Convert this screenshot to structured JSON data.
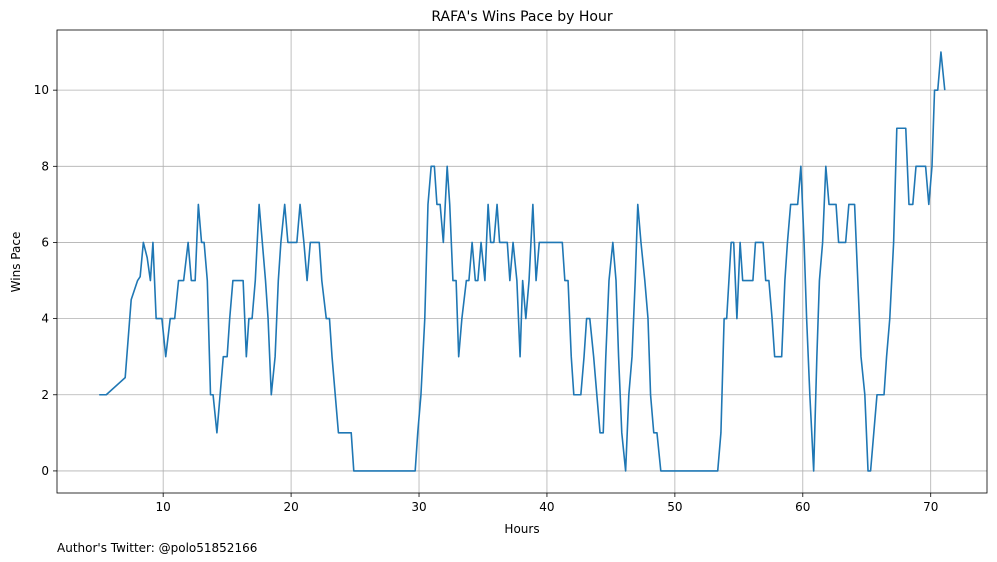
{
  "chart_data": {
    "type": "line",
    "title": "RAFA's Wins Pace by Hour",
    "x_label": "Hours",
    "y_label": "Wins Pace",
    "annotation": "Author's Twitter: @polo51852166",
    "color": "#1f77b4",
    "grid": true,
    "xlim": [
      1.7,
      74.4
    ],
    "ylim": [
      -0.58,
      11.58
    ],
    "xticks": [
      10,
      20,
      30,
      40,
      50,
      60,
      70
    ],
    "yticks": [
      0,
      2,
      4,
      6,
      8,
      10
    ],
    "x": [
      5.0,
      5.55,
      7.03,
      7.5,
      8.0,
      8.2,
      8.45,
      8.75,
      9.0,
      9.2,
      9.45,
      9.9,
      10.2,
      10.55,
      10.9,
      11.2,
      11.6,
      11.95,
      12.2,
      12.5,
      12.75,
      13.0,
      13.2,
      13.45,
      13.7,
      13.9,
      14.2,
      14.45,
      14.7,
      15.0,
      15.2,
      15.45,
      16.25,
      16.5,
      16.7,
      16.95,
      17.2,
      17.5,
      17.75,
      18.0,
      18.2,
      18.45,
      18.75,
      19.0,
      19.2,
      19.5,
      19.75,
      20.45,
      20.7,
      21.0,
      21.25,
      21.5,
      22.2,
      22.4,
      22.75,
      23.0,
      23.2,
      23.45,
      23.7,
      24.7,
      24.9,
      29.7,
      29.9,
      30.15,
      30.45,
      30.7,
      30.95,
      31.2,
      31.4,
      31.65,
      31.9,
      32.2,
      32.4,
      32.65,
      32.9,
      33.1,
      33.35,
      33.7,
      33.9,
      34.15,
      34.4,
      34.6,
      34.85,
      35.15,
      35.4,
      35.6,
      35.85,
      36.1,
      36.3,
      36.9,
      37.1,
      37.35,
      37.65,
      37.9,
      38.1,
      38.35,
      38.6,
      38.9,
      39.15,
      39.4,
      41.2,
      41.4,
      41.65,
      41.9,
      42.1,
      42.65,
      42.9,
      43.1,
      43.35,
      43.65,
      43.9,
      44.15,
      44.4,
      44.6,
      44.85,
      45.15,
      45.4,
      45.6,
      45.85,
      46.15,
      46.4,
      46.65,
      46.9,
      47.1,
      47.35,
      47.65,
      47.9,
      48.1,
      48.35,
      48.6,
      48.9,
      53.35,
      53.6,
      53.85,
      54.05,
      54.4,
      54.6,
      54.85,
      55.1,
      55.3,
      56.1,
      56.3,
      56.9,
      57.1,
      57.35,
      57.6,
      57.8,
      58.35,
      58.6,
      58.8,
      59.05,
      59.6,
      59.85,
      60.1,
      60.3,
      60.55,
      60.85,
      61.1,
      61.3,
      61.55,
      61.8,
      62.05,
      62.6,
      62.8,
      63.35,
      63.6,
      64.05,
      64.3,
      64.55,
      64.85,
      65.1,
      65.3,
      65.55,
      65.8,
      66.35,
      66.55,
      66.8,
      67.1,
      67.35,
      68.05,
      68.3,
      68.6,
      68.85,
      69.6,
      69.85,
      70.1,
      70.3,
      70.55,
      70.8,
      71.1
    ],
    "values": [
      2,
      2,
      2.45,
      4.5,
      5,
      5.1,
      6,
      5.6,
      5,
      6,
      4,
      4,
      3,
      4,
      4,
      5,
      5,
      6,
      5,
      5,
      7,
      6,
      6,
      5,
      2,
      2,
      1,
      2,
      3,
      3,
      4,
      5,
      5,
      3,
      4,
      4,
      5,
      7,
      6,
      5,
      4,
      2,
      3,
      5,
      6,
      7,
      6,
      6,
      7,
      6,
      5,
      6,
      6,
      5,
      4,
      4,
      3,
      2,
      1,
      1,
      0,
      0,
      1,
      2,
      4,
      7,
      8,
      8,
      7,
      7,
      6,
      8,
      7,
      5,
      5,
      3,
      4,
      5,
      5,
      6,
      5,
      5,
      6,
      5,
      7,
      6,
      6,
      7,
      6,
      6,
      5,
      6,
      5,
      3,
      5,
      4,
      5,
      7,
      5,
      6,
      6,
      5,
      5,
      3,
      2,
      2,
      3,
      4,
      4,
      3,
      2,
      1,
      1,
      3,
      5,
      6,
      5,
      3,
      1,
      0,
      2,
      3,
      5,
      7,
      6,
      5,
      4,
      2,
      1,
      1,
      0,
      0,
      1,
      4,
      4,
      6,
      6,
      4,
      6,
      5,
      5,
      6,
      6,
      5,
      5,
      4,
      3,
      3,
      5,
      6,
      7,
      7,
      8,
      6,
      4,
      2,
      0,
      3,
      5,
      6,
      8,
      7,
      7,
      6,
      6,
      7,
      7,
      5,
      3,
      2,
      0,
      0,
      1,
      2,
      2,
      3,
      4,
      6,
      9,
      9,
      7,
      7,
      8,
      8,
      7,
      8,
      10,
      10,
      11,
      10
    ]
  }
}
